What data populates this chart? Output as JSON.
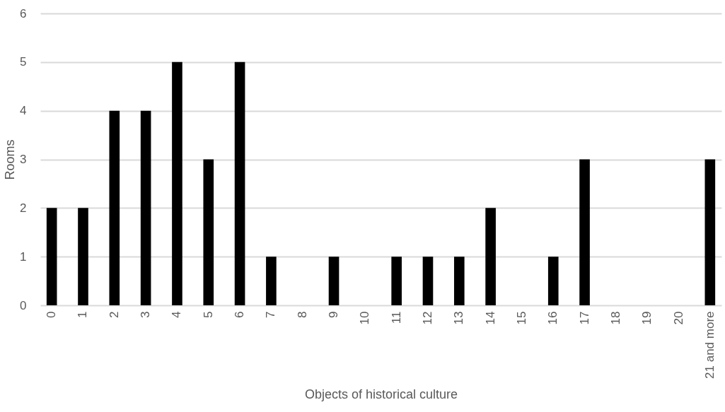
{
  "chart_data": {
    "type": "bar",
    "xlabel": "Objects of historical culture",
    "ylabel": "Rooms",
    "categories": [
      "0",
      "1",
      "2",
      "3",
      "4",
      "5",
      "6",
      "7",
      "8",
      "9",
      "10",
      "11",
      "12",
      "13",
      "14",
      "15",
      "16",
      "17",
      "18",
      "19",
      "20",
      "21 and more"
    ],
    "values": [
      2,
      2,
      4,
      4,
      5,
      3,
      5,
      1,
      0,
      1,
      0,
      1,
      1,
      1,
      2,
      0,
      1,
      3,
      0,
      0,
      0,
      3
    ],
    "color": "#000000",
    "ylim": [
      0,
      6
    ],
    "yticks": [
      0,
      1,
      2,
      3,
      4,
      5,
      6
    ],
    "grid": "y"
  }
}
